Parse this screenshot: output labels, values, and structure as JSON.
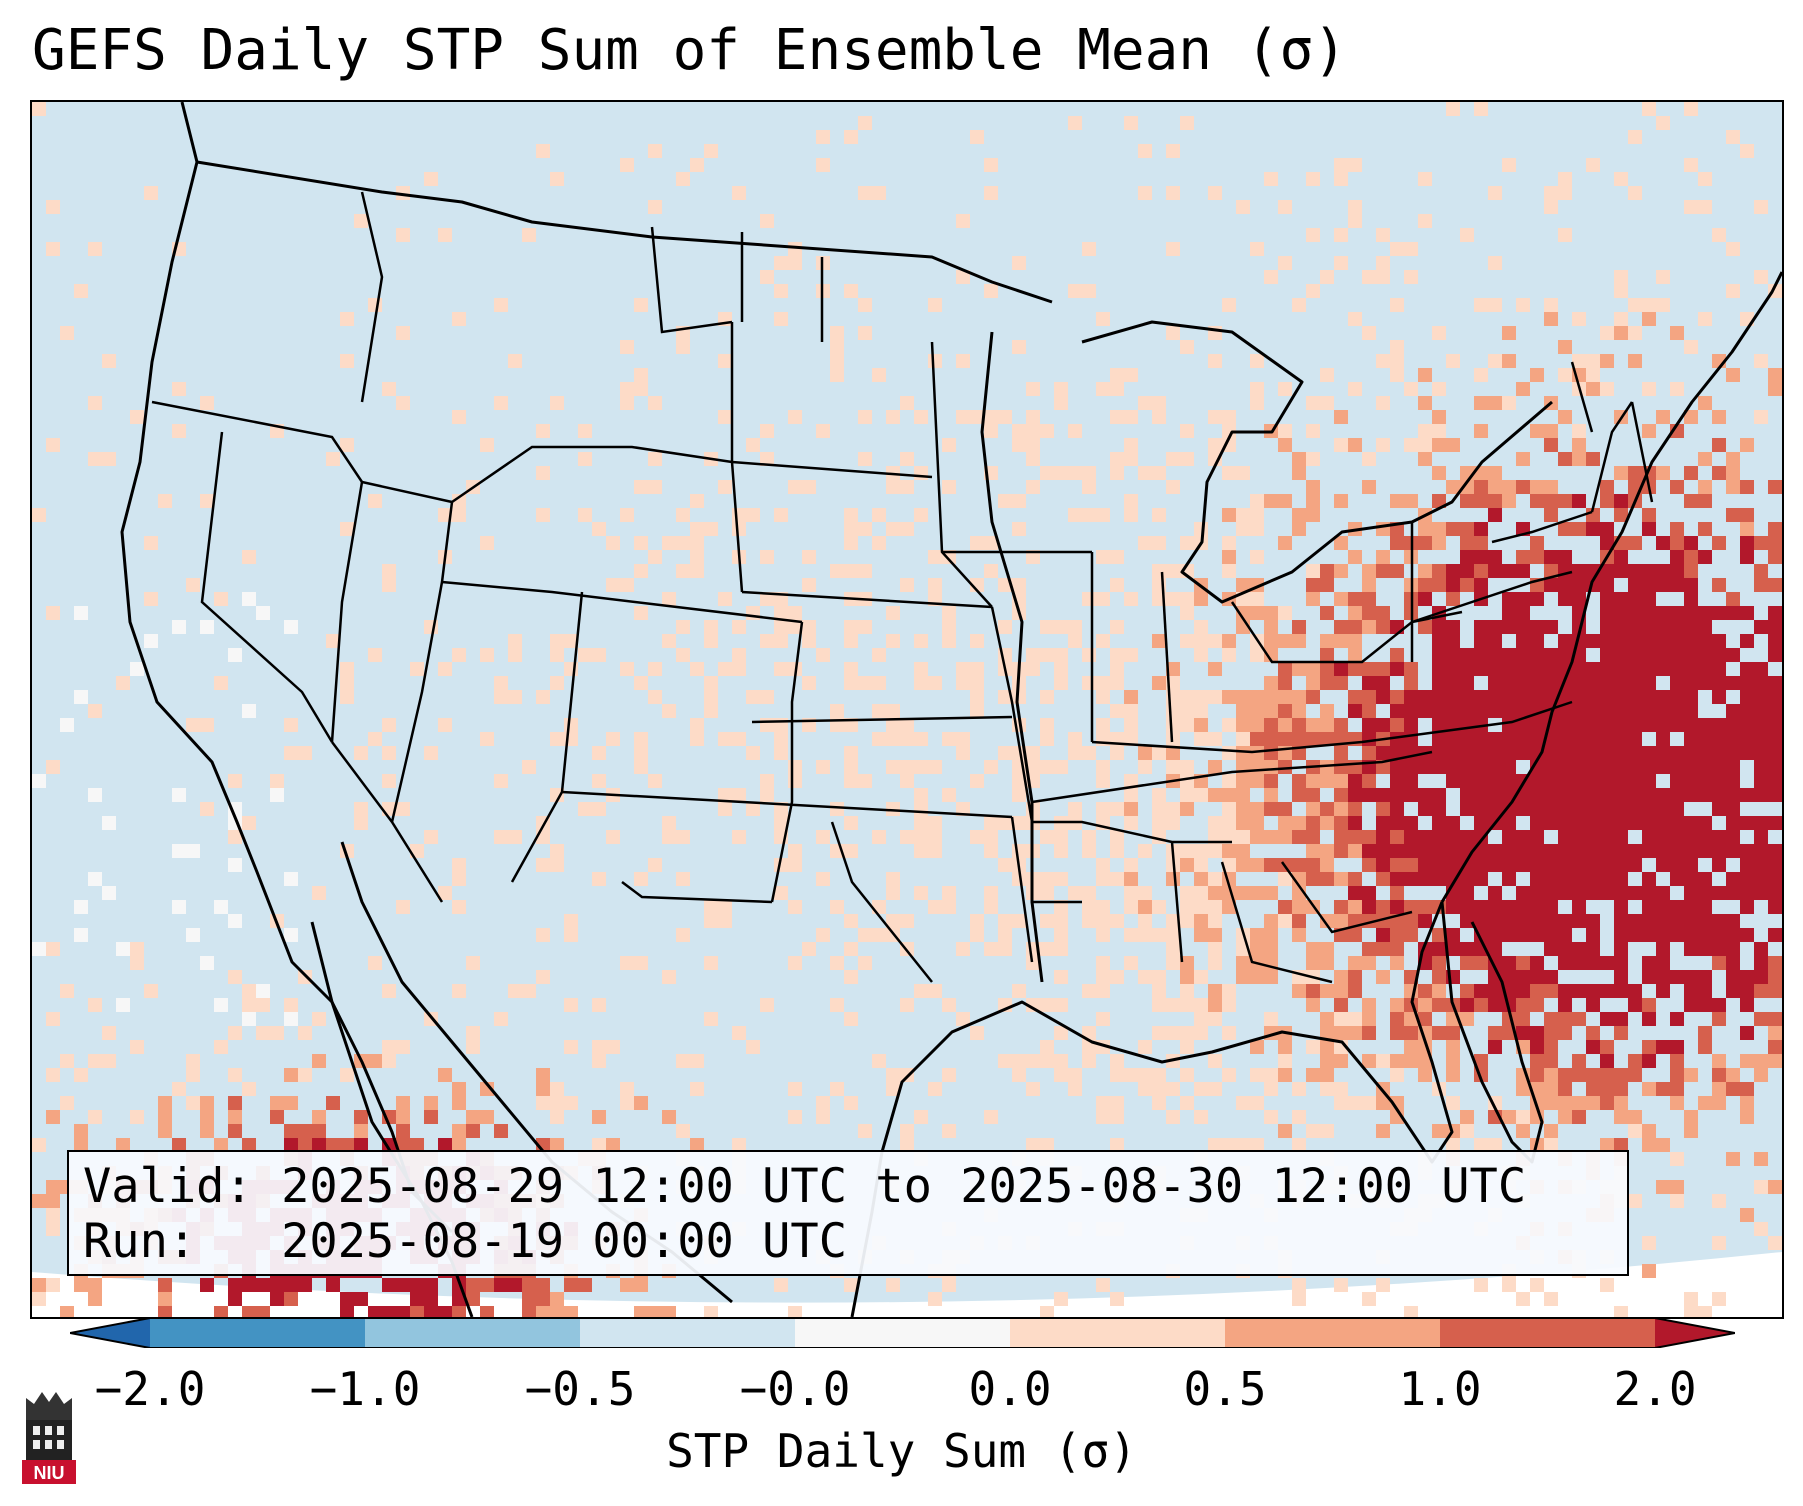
{
  "title": "GEFS Daily STP Sum of Ensemble Mean (σ)",
  "info": {
    "valid_line": "Valid: 2025-08-29 12:00 UTC to 2025-08-30 12:00 UTC",
    "run_line": "Run:   2025-08-19 00:00 UTC"
  },
  "colorbar": {
    "label": "STP Daily Sum (σ)",
    "ticks": [
      "−2.0",
      "−1.0",
      "−0.5",
      "−0.0",
      "0.0",
      "0.5",
      "1.0",
      "2.0"
    ],
    "bin_colors": [
      "#4393c3",
      "#92c5de",
      "#d1e5f0",
      "#f7f7f7",
      "#fddbc7",
      "#f4a582",
      "#d6604d"
    ],
    "under_color": "#2166ac",
    "over_color": "#b2182b"
  },
  "logo": {
    "text": "NIU"
  },
  "icons": {
    "logo": "niu-tower-icon"
  }
}
